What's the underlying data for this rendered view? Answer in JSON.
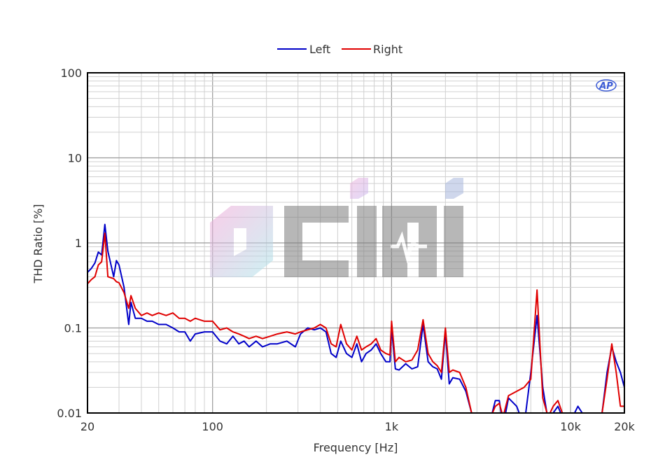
{
  "chart_data": {
    "type": "line",
    "xlabel": "Frequency [Hz]",
    "ylabel": "THD Ratio [%]",
    "x_scale": "log",
    "y_scale": "log",
    "xlim": [
      20,
      20000
    ],
    "ylim": [
      0.01,
      100
    ],
    "x_ticks": [
      {
        "value": 20,
        "label": "20"
      },
      {
        "value": 100,
        "label": "100"
      },
      {
        "value": 1000,
        "label": "1k"
      },
      {
        "value": 10000,
        "label": "10k"
      },
      {
        "value": 20000,
        "label": "20k"
      }
    ],
    "y_ticks": [
      {
        "value": 0.01,
        "label": "0.01"
      },
      {
        "value": 0.1,
        "label": "0.1"
      },
      {
        "value": 1,
        "label": "1"
      },
      {
        "value": 10,
        "label": "10"
      },
      {
        "value": 100,
        "label": "100"
      }
    ],
    "grid": true,
    "legend_position": "top-center",
    "brand_logo_text": "AP",
    "watermark_text": "CINI",
    "series": [
      {
        "name": "Left",
        "color": "#0000c8",
        "points": [
          [
            20,
            0.45
          ],
          [
            21,
            0.5
          ],
          [
            22,
            0.58
          ],
          [
            23,
            0.78
          ],
          [
            24,
            0.72
          ],
          [
            25,
            1.65
          ],
          [
            26,
            0.8
          ],
          [
            28,
            0.4
          ],
          [
            29,
            0.62
          ],
          [
            30,
            0.55
          ],
          [
            32,
            0.3
          ],
          [
            34,
            0.11
          ],
          [
            35,
            0.2
          ],
          [
            37,
            0.13
          ],
          [
            40,
            0.13
          ],
          [
            43,
            0.12
          ],
          [
            46,
            0.12
          ],
          [
            50,
            0.11
          ],
          [
            55,
            0.11
          ],
          [
            60,
            0.1
          ],
          [
            65,
            0.09
          ],
          [
            70,
            0.09
          ],
          [
            75,
            0.07
          ],
          [
            80,
            0.085
          ],
          [
            90,
            0.09
          ],
          [
            100,
            0.09
          ],
          [
            110,
            0.07
          ],
          [
            120,
            0.065
          ],
          [
            130,
            0.08
          ],
          [
            140,
            0.065
          ],
          [
            150,
            0.07
          ],
          [
            160,
            0.06
          ],
          [
            175,
            0.07
          ],
          [
            190,
            0.06
          ],
          [
            210,
            0.065
          ],
          [
            230,
            0.065
          ],
          [
            260,
            0.07
          ],
          [
            290,
            0.06
          ],
          [
            310,
            0.085
          ],
          [
            340,
            0.1
          ],
          [
            370,
            0.095
          ],
          [
            400,
            0.1
          ],
          [
            430,
            0.09
          ],
          [
            460,
            0.05
          ],
          [
            490,
            0.045
          ],
          [
            520,
            0.07
          ],
          [
            560,
            0.05
          ],
          [
            600,
            0.045
          ],
          [
            640,
            0.065
          ],
          [
            680,
            0.04
          ],
          [
            720,
            0.05
          ],
          [
            770,
            0.055
          ],
          [
            820,
            0.065
          ],
          [
            870,
            0.05
          ],
          [
            930,
            0.04
          ],
          [
            980,
            0.04
          ],
          [
            1000,
            0.1
          ],
          [
            1050,
            0.033
          ],
          [
            1100,
            0.032
          ],
          [
            1200,
            0.038
          ],
          [
            1300,
            0.033
          ],
          [
            1400,
            0.035
          ],
          [
            1500,
            0.11
          ],
          [
            1600,
            0.04
          ],
          [
            1700,
            0.035
          ],
          [
            1800,
            0.033
          ],
          [
            1900,
            0.025
          ],
          [
            2000,
            0.09
          ],
          [
            2100,
            0.022
          ],
          [
            2200,
            0.026
          ],
          [
            2400,
            0.025
          ],
          [
            2600,
            0.018
          ],
          [
            2800,
            0.01
          ],
          [
            3000,
            0.009
          ],
          [
            3200,
            0.008
          ],
          [
            3500,
            0.007
          ],
          [
            3800,
            0.014
          ],
          [
            4000,
            0.014
          ],
          [
            4200,
            0.007
          ],
          [
            4500,
            0.015
          ],
          [
            5000,
            0.012
          ],
          [
            5500,
            0.007
          ],
          [
            6000,
            0.03
          ],
          [
            6500,
            0.14
          ],
          [
            7000,
            0.02
          ],
          [
            7500,
            0.008
          ],
          [
            8000,
            0.01
          ],
          [
            8500,
            0.012
          ],
          [
            9000,
            0.009
          ],
          [
            10000,
            0.008
          ],
          [
            11000,
            0.012
          ],
          [
            12000,
            0.009
          ],
          [
            13000,
            0.01
          ],
          [
            14000,
            0.009
          ],
          [
            15000,
            0.01
          ],
          [
            16000,
            0.03
          ],
          [
            17000,
            0.06
          ],
          [
            18000,
            0.04
          ],
          [
            19000,
            0.03
          ],
          [
            20000,
            0.02
          ]
        ]
      },
      {
        "name": "Right",
        "color": "#e00000",
        "points": [
          [
            20,
            0.33
          ],
          [
            21,
            0.37
          ],
          [
            22,
            0.4
          ],
          [
            23,
            0.55
          ],
          [
            24,
            0.6
          ],
          [
            25,
            1.3
          ],
          [
            26,
            0.4
          ],
          [
            28,
            0.38
          ],
          [
            29,
            0.35
          ],
          [
            30,
            0.34
          ],
          [
            32,
            0.26
          ],
          [
            34,
            0.17
          ],
          [
            35,
            0.24
          ],
          [
            37,
            0.17
          ],
          [
            40,
            0.14
          ],
          [
            43,
            0.15
          ],
          [
            46,
            0.14
          ],
          [
            50,
            0.15
          ],
          [
            55,
            0.14
          ],
          [
            60,
            0.15
          ],
          [
            65,
            0.13
          ],
          [
            70,
            0.13
          ],
          [
            75,
            0.12
          ],
          [
            80,
            0.13
          ],
          [
            90,
            0.12
          ],
          [
            100,
            0.12
          ],
          [
            110,
            0.095
          ],
          [
            120,
            0.1
          ],
          [
            130,
            0.09
          ],
          [
            140,
            0.085
          ],
          [
            150,
            0.08
          ],
          [
            160,
            0.075
          ],
          [
            175,
            0.08
          ],
          [
            190,
            0.075
          ],
          [
            210,
            0.08
          ],
          [
            230,
            0.085
          ],
          [
            260,
            0.09
          ],
          [
            290,
            0.085
          ],
          [
            310,
            0.09
          ],
          [
            340,
            0.095
          ],
          [
            370,
            0.1
          ],
          [
            400,
            0.11
          ],
          [
            430,
            0.1
          ],
          [
            460,
            0.065
          ],
          [
            490,
            0.06
          ],
          [
            520,
            0.11
          ],
          [
            560,
            0.065
          ],
          [
            600,
            0.055
          ],
          [
            640,
            0.08
          ],
          [
            680,
            0.055
          ],
          [
            720,
            0.06
          ],
          [
            770,
            0.065
          ],
          [
            820,
            0.075
          ],
          [
            870,
            0.055
          ],
          [
            930,
            0.05
          ],
          [
            980,
            0.048
          ],
          [
            1000,
            0.12
          ],
          [
            1050,
            0.04
          ],
          [
            1100,
            0.045
          ],
          [
            1200,
            0.04
          ],
          [
            1300,
            0.042
          ],
          [
            1400,
            0.055
          ],
          [
            1500,
            0.125
          ],
          [
            1600,
            0.05
          ],
          [
            1700,
            0.04
          ],
          [
            1800,
            0.036
          ],
          [
            1900,
            0.03
          ],
          [
            2000,
            0.1
          ],
          [
            2100,
            0.03
          ],
          [
            2200,
            0.032
          ],
          [
            2400,
            0.03
          ],
          [
            2600,
            0.02
          ],
          [
            2800,
            0.01
          ],
          [
            3000,
            0.009
          ],
          [
            3200,
            0.008
          ],
          [
            3500,
            0.008
          ],
          [
            3800,
            0.012
          ],
          [
            4000,
            0.013
          ],
          [
            4200,
            0.009
          ],
          [
            4500,
            0.016
          ],
          [
            5000,
            0.018
          ],
          [
            5500,
            0.02
          ],
          [
            6000,
            0.025
          ],
          [
            6500,
            0.28
          ],
          [
            7000,
            0.015
          ],
          [
            7500,
            0.009
          ],
          [
            8000,
            0.012
          ],
          [
            8500,
            0.014
          ],
          [
            9000,
            0.01
          ],
          [
            10000,
            0.009
          ],
          [
            11000,
            0.008
          ],
          [
            12000,
            0.01
          ],
          [
            13000,
            0.009
          ],
          [
            14000,
            0.009
          ],
          [
            15000,
            0.01
          ],
          [
            16000,
            0.025
          ],
          [
            17000,
            0.065
          ],
          [
            18000,
            0.03
          ],
          [
            19000,
            0.012
          ],
          [
            20000,
            0.012
          ]
        ]
      }
    ]
  }
}
